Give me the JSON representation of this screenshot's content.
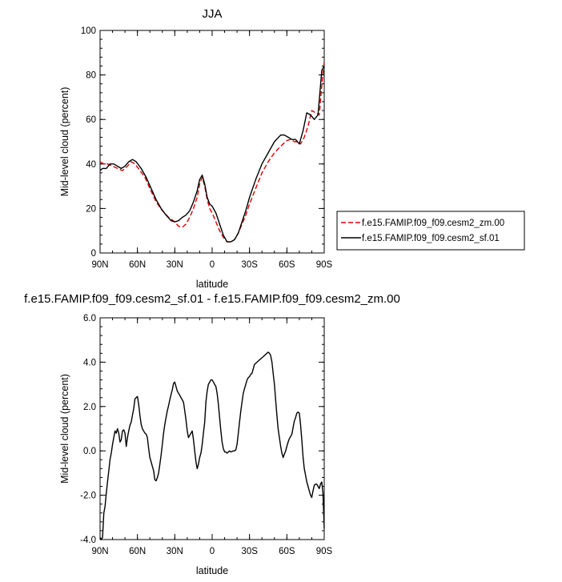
{
  "chart_data": [
    {
      "type": "line",
      "title": "JJA",
      "xlabel": "latitude",
      "ylabel": "Mid-level cloud (percent)",
      "xlim": [
        90,
        -90
      ],
      "ylim": [
        0,
        100
      ],
      "xticks": [
        90,
        60,
        30,
        0,
        -30,
        -60,
        -90
      ],
      "xticklabels": [
        "90N",
        "60N",
        "30N",
        "0",
        "30S",
        "60S",
        "90S"
      ],
      "yticks": [
        0,
        20,
        40,
        60,
        80,
        100
      ],
      "yticklabels": [
        "0",
        "20",
        "40",
        "60",
        "80",
        "100"
      ],
      "legend": {
        "placement": "right"
      },
      "series": [
        {
          "name": "f.e15.FAMIP.f09_f09.cesm2_zm.00",
          "color": "#dd0000",
          "dash": "dashed",
          "x": [
            90,
            87,
            84,
            80,
            76,
            72,
            68,
            65,
            62,
            58,
            54,
            50,
            45,
            40,
            35,
            30,
            27,
            24,
            21,
            18,
            15,
            12,
            10,
            8,
            6,
            4,
            2,
            0,
            -3,
            -6,
            -9,
            -12,
            -15,
            -18,
            -21,
            -24,
            -27,
            -30,
            -35,
            -40,
            -45,
            -50,
            -55,
            -60,
            -63,
            -66,
            -69,
            -71,
            -74,
            -77,
            -80,
            -83,
            -86,
            -88,
            -90
          ],
          "y": [
            41,
            40,
            40,
            39,
            38,
            37,
            39,
            41,
            40,
            37,
            34,
            29,
            23,
            19,
            16,
            14,
            12,
            11.5,
            13,
            16,
            20,
            25,
            31,
            34,
            30,
            24,
            20,
            18,
            14,
            10,
            7,
            5,
            5,
            6,
            9,
            13,
            17,
            22,
            29,
            36,
            41,
            45,
            48,
            50.5,
            51,
            50,
            50,
            49,
            52,
            57,
            64,
            63,
            62,
            75,
            86
          ]
        },
        {
          "name": "f.e15.FAMIP.f09_f09.cesm2_sf.01",
          "color": "#000000",
          "dash": "solid",
          "x": [
            90,
            88,
            85,
            82,
            79,
            76,
            73,
            70,
            67,
            64,
            61,
            57,
            53,
            49,
            45,
            41,
            37,
            33,
            30,
            27,
            24,
            21,
            18,
            15,
            12,
            10,
            8,
            6,
            4,
            2,
            0,
            -3,
            -6,
            -9,
            -12,
            -15,
            -18,
            -21,
            -24,
            -27,
            -30,
            -35,
            -40,
            -45,
            -50,
            -55,
            -58,
            -61,
            -64,
            -67,
            -70,
            -73,
            -76,
            -79,
            -82,
            -85,
            -87,
            -88,
            -90
          ],
          "y": [
            37,
            38,
            38,
            40,
            40,
            39,
            38,
            39,
            41,
            42,
            41,
            38,
            34,
            29,
            24,
            20,
            17,
            14.5,
            14,
            14.5,
            16,
            17,
            19,
            23,
            28,
            33,
            35,
            31,
            25,
            22,
            21,
            18,
            13,
            8,
            5,
            5,
            6,
            9,
            14,
            19,
            25,
            33,
            40,
            45,
            50,
            53,
            53,
            52,
            51,
            51,
            49,
            55,
            63,
            62,
            60,
            62,
            75,
            82,
            84
          ]
        }
      ]
    },
    {
      "type": "line",
      "title": "f.e15.FAMIP.f09_f09.cesm2_sf.01 - f.e15.FAMIP.f09_f09.cesm2_zm.00",
      "xlabel": "latitude",
      "ylabel": "Mid-level cloud (percent)",
      "xlim": [
        90,
        -90
      ],
      "ylim": [
        -4,
        6
      ],
      "xticks": [
        90,
        60,
        30,
        0,
        -30,
        -60,
        -90
      ],
      "xticklabels": [
        "90N",
        "60N",
        "30N",
        "0",
        "30S",
        "60S",
        "90S"
      ],
      "yticks": [
        -4,
        -2,
        0,
        2,
        4,
        6
      ],
      "yticklabels": [
        "-4.0",
        "-2.0",
        "0.0",
        "2.0",
        "4.0",
        "6.0"
      ],
      "series": [
        {
          "color": "#000000",
          "x": [
            90,
            89,
            88,
            87,
            86,
            85,
            84,
            83,
            82,
            81,
            80,
            79,
            78,
            77,
            76,
            75,
            74,
            73,
            72,
            71,
            70,
            69,
            68,
            67,
            66,
            65,
            64,
            63,
            62,
            61,
            60,
            59,
            58,
            57,
            56,
            55,
            54,
            53,
            52,
            51,
            50,
            49,
            48,
            47,
            46,
            45,
            44,
            43,
            42,
            41,
            40,
            39,
            38,
            37,
            36,
            35,
            34,
            33,
            32,
            31,
            30,
            29,
            28,
            27,
            26,
            25,
            24,
            23,
            22,
            21,
            20,
            19,
            18,
            17,
            16,
            15,
            14,
            13,
            12,
            11,
            10,
            9,
            8,
            7,
            6,
            5,
            4,
            3,
            2,
            1,
            0,
            -1,
            -2,
            -3,
            -4,
            -5,
            -6,
            -7,
            -8,
            -9,
            -10,
            -11,
            -12,
            -13,
            -14,
            -15,
            -16,
            -17,
            -18,
            -19,
            -20,
            -21,
            -22,
            -23,
            -24,
            -25,
            -26,
            -27,
            -28,
            -29,
            -30,
            -31,
            -32,
            -33,
            -34,
            -35,
            -36,
            -37,
            -38,
            -39,
            -40,
            -41,
            -42,
            -43,
            -44,
            -45,
            -46,
            -47,
            -48,
            -49,
            -50,
            -51,
            -52,
            -53,
            -54,
            -55,
            -56,
            -57,
            -58,
            -59,
            -60,
            -61,
            -62,
            -63,
            -64,
            -65,
            -66,
            -67,
            -68,
            -69,
            -70,
            -71,
            -72,
            -73,
            -74,
            -75,
            -76,
            -77,
            -78,
            -79,
            -80,
            -81,
            -82,
            -83,
            -84,
            -85,
            -86,
            -87,
            -88,
            -89,
            -90
          ],
          "y": [
            -3.9,
            -4.0,
            -3.9,
            -2.8,
            -2.5,
            -1.9,
            -1.4,
            -0.9,
            -0.4,
            -0.1,
            0.3,
            0.6,
            0.9,
            0.8,
            1.0,
            0.8,
            0.4,
            0.5,
            0.9,
            0.95,
            0.8,
            0.2,
            0.6,
            0.9,
            1.15,
            1.3,
            1.6,
            1.9,
            2.35,
            2.4,
            2.45,
            2.1,
            1.6,
            1.2,
            1.0,
            0.9,
            0.8,
            0.75,
            0.6,
            0.1,
            -0.3,
            -0.5,
            -0.7,
            -0.9,
            -1.3,
            -1.35,
            -1.2,
            -1.0,
            -0.6,
            -0.2,
            0.3,
            0.8,
            1.2,
            1.5,
            1.8,
            2.05,
            2.3,
            2.55,
            2.75,
            3.05,
            3.1,
            2.9,
            2.7,
            2.6,
            2.5,
            2.4,
            2.3,
            2.2,
            1.8,
            1.4,
            0.9,
            0.6,
            0.7,
            0.8,
            0.9,
            0.5,
            0.0,
            -0.5,
            -0.8,
            -0.6,
            -0.3,
            -0.1,
            0.3,
            0.8,
            1.3,
            2.2,
            2.7,
            3.0,
            3.1,
            3.2,
            3.2,
            3.1,
            3.0,
            2.9,
            2.6,
            2.1,
            1.5,
            0.9,
            0.4,
            0.1,
            -0.05,
            -0.05,
            -0.1,
            -0.05,
            0.0,
            -0.05,
            -0.03,
            0.0,
            0.0,
            0.05,
            0.3,
            0.8,
            1.3,
            1.8,
            2.2,
            2.6,
            2.8,
            3.0,
            3.2,
            3.3,
            3.35,
            3.45,
            3.5,
            3.7,
            3.9,
            3.95,
            4.0,
            4.05,
            4.1,
            4.15,
            4.2,
            4.25,
            4.3,
            4.35,
            4.4,
            4.45,
            4.4,
            4.3,
            4.0,
            3.5,
            3.0,
            2.3,
            1.6,
            1.0,
            0.6,
            0.2,
            -0.1,
            -0.3,
            -0.15,
            0.0,
            0.2,
            0.4,
            0.55,
            0.65,
            0.75,
            1.05,
            1.35,
            1.5,
            1.7,
            1.75,
            1.7,
            1.2,
            0.5,
            -0.3,
            -0.8,
            -1.1,
            -1.4,
            -1.6,
            -1.8,
            -2.0,
            -2.1,
            -1.8,
            -1.55,
            -1.5,
            -1.5,
            -1.6,
            -1.7,
            -1.5,
            -1.4,
            -1.9,
            -3.5
          ]
        }
      ]
    }
  ]
}
